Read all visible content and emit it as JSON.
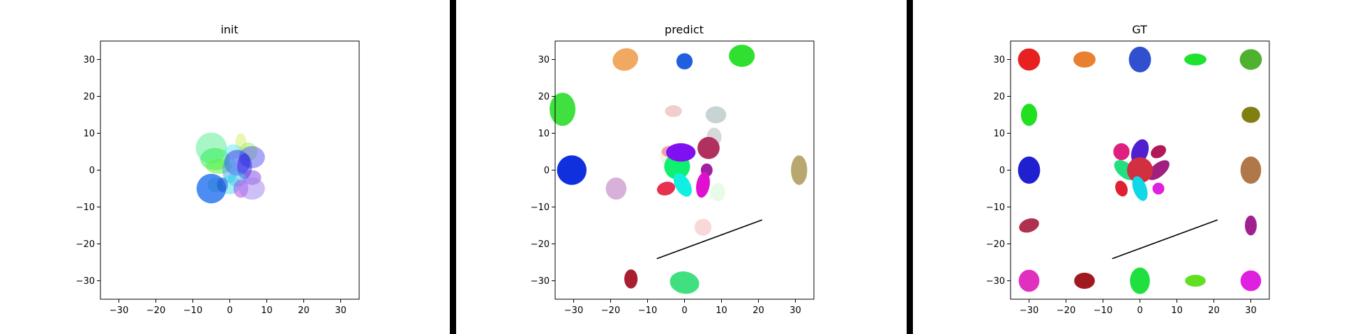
{
  "chart_data": [
    {
      "type": "scatter",
      "title": "init",
      "xlim": [
        -35,
        35
      ],
      "ylim": [
        -35,
        35
      ],
      "xticks": [
        -30,
        -20,
        -10,
        0,
        10,
        20,
        30
      ],
      "yticks": [
        30,
        20,
        10,
        0,
        -10,
        -20,
        -30
      ],
      "grid": false,
      "ellipses": [
        {
          "x": -5,
          "y": 6,
          "rx": 4.2,
          "ry": 4.2,
          "angle": 0,
          "color": "#6ef0a0",
          "alpha": 0.6
        },
        {
          "x": -4,
          "y": 3,
          "rx": 4,
          "ry": 3,
          "angle": 0,
          "color": "#3cf060",
          "alpha": 0.6
        },
        {
          "x": -3,
          "y": 1,
          "rx": 3.5,
          "ry": 2,
          "angle": 0,
          "color": "#5ef040",
          "alpha": 0.55
        },
        {
          "x": 3,
          "y": 7.5,
          "rx": 1.5,
          "ry": 2.5,
          "angle": 0,
          "color": "#e0f080",
          "alpha": 0.6
        },
        {
          "x": 5,
          "y": 5,
          "rx": 2.5,
          "ry": 2.5,
          "angle": 0,
          "color": "#a0f060",
          "alpha": 0.55
        },
        {
          "x": 1,
          "y": 5,
          "rx": 2.5,
          "ry": 2,
          "angle": 0,
          "color": "#60e8f0",
          "alpha": 0.5
        },
        {
          "x": 6,
          "y": 3.5,
          "rx": 3.5,
          "ry": 3,
          "angle": 0,
          "color": "#6060f0",
          "alpha": 0.55
        },
        {
          "x": 2,
          "y": 2,
          "rx": 3.5,
          "ry": 3.5,
          "angle": 0,
          "color": "#4040e8",
          "alpha": 0.55
        },
        {
          "x": 4,
          "y": 1,
          "rx": 2,
          "ry": 3.5,
          "angle": 0,
          "color": "#2020e0",
          "alpha": 0.5
        },
        {
          "x": 0,
          "y": 0,
          "rx": 2,
          "ry": 3.5,
          "angle": 0,
          "color": "#40a0f0",
          "alpha": 0.5
        },
        {
          "x": 6,
          "y": -2,
          "rx": 2.5,
          "ry": 2,
          "angle": 0,
          "color": "#8040e0",
          "alpha": 0.5
        },
        {
          "x": 2,
          "y": -2.5,
          "rx": 2.5,
          "ry": 2,
          "angle": 0,
          "color": "#40c0f0",
          "alpha": 0.5
        },
        {
          "x": 0,
          "y": -4,
          "rx": 3,
          "ry": 2.5,
          "angle": 0,
          "color": "#40e0f0",
          "alpha": 0.5
        },
        {
          "x": 3,
          "y": -5,
          "rx": 2,
          "ry": 2.5,
          "angle": 0,
          "color": "#b040e0",
          "alpha": 0.5
        },
        {
          "x": 6,
          "y": -5,
          "rx": 3.5,
          "ry": 3,
          "angle": 0,
          "color": "#a080f0",
          "alpha": 0.5
        },
        {
          "x": -4,
          "y": -4,
          "rx": 2,
          "ry": 2,
          "angle": 0,
          "color": "#40c060",
          "alpha": 0.5
        },
        {
          "x": -5,
          "y": -5,
          "rx": 4,
          "ry": 4,
          "angle": 0,
          "color": "#2070f0",
          "alpha": 0.8
        },
        {
          "x": -2,
          "y": -4,
          "rx": 1.5,
          "ry": 2,
          "angle": 0,
          "color": "#2050d0",
          "alpha": 0.5
        }
      ],
      "lines": []
    },
    {
      "type": "scatter",
      "title": "predict",
      "xlim": [
        -35,
        35
      ],
      "ylim": [
        -35,
        35
      ],
      "xticks": [
        -30,
        -20,
        -10,
        0,
        10,
        20,
        30
      ],
      "yticks": [
        30,
        20,
        10,
        0,
        -10,
        -20,
        -30
      ],
      "grid": false,
      "ellipses": [
        {
          "x": -16,
          "y": 30,
          "rx": 3.5,
          "ry": 3,
          "angle": 20,
          "color": "#f0a050",
          "alpha": 0.9
        },
        {
          "x": 0,
          "y": 29.5,
          "rx": 2.2,
          "ry": 2.2,
          "angle": 30,
          "color": "#2060e0",
          "alpha": 1
        },
        {
          "x": 15.5,
          "y": 31,
          "rx": 3.5,
          "ry": 3,
          "angle": 0,
          "color": "#30e030",
          "alpha": 1
        },
        {
          "x": -33,
          "y": 16.5,
          "rx": 3.5,
          "ry": 4.5,
          "angle": 0,
          "color": "#40e040",
          "alpha": 1
        },
        {
          "x": -3,
          "y": 16,
          "rx": 2.3,
          "ry": 1.6,
          "angle": 0,
          "color": "#f0c8c8",
          "alpha": 0.9
        },
        {
          "x": 8.5,
          "y": 15,
          "rx": 2.8,
          "ry": 2.3,
          "angle": 0,
          "color": "#c8d4d4",
          "alpha": 1
        },
        {
          "x": 8,
          "y": 9,
          "rx": 2,
          "ry": 2.5,
          "angle": 0,
          "color": "#d8d8d8",
          "alpha": 1
        },
        {
          "x": -30.5,
          "y": 0,
          "rx": 4,
          "ry": 4,
          "angle": 0,
          "color": "#1030e0",
          "alpha": 1
        },
        {
          "x": -4,
          "y": 5,
          "rx": 2.2,
          "ry": 1.5,
          "angle": 0,
          "color": "#f04090",
          "alpha": 0.9
        },
        {
          "x": -4.5,
          "y": 4,
          "rx": 2.2,
          "ry": 2.8,
          "angle": 0,
          "color": "#f0e8c8",
          "alpha": 0.5
        },
        {
          "x": 6.5,
          "y": 6,
          "rx": 3,
          "ry": 3,
          "angle": 0,
          "color": "#b03060",
          "alpha": 1
        },
        {
          "x": -2,
          "y": 1,
          "rx": 3.5,
          "ry": 3.5,
          "angle": 0,
          "color": "#10f070",
          "alpha": 1
        },
        {
          "x": -1,
          "y": 4.8,
          "rx": 4,
          "ry": 2.5,
          "angle": 0,
          "color": "#8010f0",
          "alpha": 1
        },
        {
          "x": 6,
          "y": 0,
          "rx": 1.6,
          "ry": 1.8,
          "angle": 0,
          "color": "#a020a0",
          "alpha": 1
        },
        {
          "x": 31,
          "y": 0,
          "rx": 2.2,
          "ry": 4,
          "angle": 0,
          "color": "#b8a870",
          "alpha": 1
        },
        {
          "x": -18.5,
          "y": -5,
          "rx": 2.8,
          "ry": 3,
          "angle": 0,
          "color": "#d8b0d8",
          "alpha": 1
        },
        {
          "x": -5,
          "y": -5,
          "rx": 2.5,
          "ry": 1.8,
          "angle": 15,
          "color": "#e83050",
          "alpha": 1
        },
        {
          "x": -0.5,
          "y": -4,
          "rx": 2,
          "ry": 3.5,
          "angle": 30,
          "color": "#10f0e0",
          "alpha": 1
        },
        {
          "x": 5,
          "y": -4,
          "rx": 1.8,
          "ry": 3.5,
          "angle": -10,
          "color": "#e010d0",
          "alpha": 1
        },
        {
          "x": 9,
          "y": -6,
          "rx": 2,
          "ry": 2.5,
          "angle": 0,
          "color": "#e8fae8",
          "alpha": 1
        },
        {
          "x": 5,
          "y": -15.5,
          "rx": 2.3,
          "ry": 2.3,
          "angle": 0,
          "color": "#f8d8d8",
          "alpha": 1
        },
        {
          "x": -14.5,
          "y": -29.5,
          "rx": 1.8,
          "ry": 2.6,
          "angle": 0,
          "color": "#a82030",
          "alpha": 1
        },
        {
          "x": 0,
          "y": -30.5,
          "rx": 4,
          "ry": 3,
          "angle": -10,
          "color": "#40e080",
          "alpha": 1
        }
      ],
      "lines": [
        {
          "x1": -7.5,
          "y1": -24,
          "x2": 21,
          "y2": -13.5,
          "color": "#000000"
        }
      ]
    },
    {
      "type": "scatter",
      "title": "GT",
      "xlim": [
        -35,
        35
      ],
      "ylim": [
        -35,
        35
      ],
      "xticks": [
        -30,
        -20,
        -10,
        0,
        10,
        20,
        30
      ],
      "yticks": [
        30,
        20,
        10,
        0,
        -10,
        -20,
        -30
      ],
      "grid": false,
      "ellipses": [
        {
          "x": -30,
          "y": 30,
          "rx": 3,
          "ry": 3,
          "angle": 0,
          "color": "#e82020",
          "alpha": 1
        },
        {
          "x": -15,
          "y": 30,
          "rx": 3,
          "ry": 2.2,
          "angle": 0,
          "color": "#e88030",
          "alpha": 1
        },
        {
          "x": 0,
          "y": 30,
          "rx": 3,
          "ry": 3.5,
          "angle": 0,
          "color": "#3050d0",
          "alpha": 1
        },
        {
          "x": 15,
          "y": 30,
          "rx": 3,
          "ry": 1.6,
          "angle": 0,
          "color": "#20e030",
          "alpha": 1
        },
        {
          "x": 30,
          "y": 30,
          "rx": 3,
          "ry": 2.8,
          "angle": 0,
          "color": "#50b030",
          "alpha": 1
        },
        {
          "x": -30,
          "y": 15,
          "rx": 2.2,
          "ry": 3,
          "angle": 0,
          "color": "#20e020",
          "alpha": 1
        },
        {
          "x": 30,
          "y": 15,
          "rx": 2.5,
          "ry": 2.2,
          "angle": 0,
          "color": "#808010",
          "alpha": 1
        },
        {
          "x": -30,
          "y": 0,
          "rx": 3,
          "ry": 3.7,
          "angle": 0,
          "color": "#2020d0",
          "alpha": 1
        },
        {
          "x": 30,
          "y": 0,
          "rx": 2.8,
          "ry": 3.7,
          "angle": 0,
          "color": "#b07848",
          "alpha": 1
        },
        {
          "x": -30,
          "y": -15,
          "rx": 2.8,
          "ry": 1.8,
          "angle": 20,
          "color": "#b03050",
          "alpha": 1
        },
        {
          "x": 30,
          "y": -15,
          "rx": 1.6,
          "ry": 2.7,
          "angle": 0,
          "color": "#a02090",
          "alpha": 1
        },
        {
          "x": -30,
          "y": -30,
          "rx": 2.8,
          "ry": 3,
          "angle": 0,
          "color": "#e030c0",
          "alpha": 1
        },
        {
          "x": -15,
          "y": -30,
          "rx": 2.8,
          "ry": 2.2,
          "angle": 0,
          "color": "#a01820",
          "alpha": 1
        },
        {
          "x": 0,
          "y": -30,
          "rx": 2.7,
          "ry": 3.6,
          "angle": 0,
          "color": "#20e040",
          "alpha": 1
        },
        {
          "x": 15,
          "y": -30,
          "rx": 2.8,
          "ry": 1.6,
          "angle": 0,
          "color": "#60e020",
          "alpha": 1
        },
        {
          "x": 30,
          "y": -30,
          "rx": 2.8,
          "ry": 2.8,
          "angle": 0,
          "color": "#e020e0",
          "alpha": 1
        },
        {
          "x": -5,
          "y": 5,
          "rx": 2.2,
          "ry": 2.3,
          "angle": 0,
          "color": "#e02080",
          "alpha": 1
        },
        {
          "x": 0,
          "y": 5,
          "rx": 2.2,
          "ry": 3.5,
          "angle": -20,
          "color": "#5020d0",
          "alpha": 1
        },
        {
          "x": 5,
          "y": 5,
          "rx": 2.2,
          "ry": 1.6,
          "angle": 30,
          "color": "#b01858",
          "alpha": 1
        },
        {
          "x": -4,
          "y": 0,
          "rx": 3.5,
          "ry": 2,
          "angle": -40,
          "color": "#20e080",
          "alpha": 1
        },
        {
          "x": 5,
          "y": 0,
          "rx": 3.6,
          "ry": 1.8,
          "angle": 40,
          "color": "#a02080",
          "alpha": 1
        },
        {
          "x": 0,
          "y": 0,
          "rx": 3.5,
          "ry": 3.5,
          "angle": 0,
          "color": "#d03040",
          "alpha": 1
        },
        {
          "x": -5,
          "y": -5,
          "rx": 1.6,
          "ry": 2.2,
          "angle": 20,
          "color": "#e02030",
          "alpha": 1
        },
        {
          "x": 0,
          "y": -5,
          "rx": 1.8,
          "ry": 3.5,
          "angle": 20,
          "color": "#10d8e8",
          "alpha": 1
        },
        {
          "x": 5,
          "y": -5,
          "rx": 1.6,
          "ry": 1.6,
          "angle": 0,
          "color": "#e020e0",
          "alpha": 1
        }
      ],
      "lines": [
        {
          "x1": -7.5,
          "y1": -24,
          "x2": 21,
          "y2": -13.5,
          "color": "#000000"
        }
      ]
    }
  ]
}
